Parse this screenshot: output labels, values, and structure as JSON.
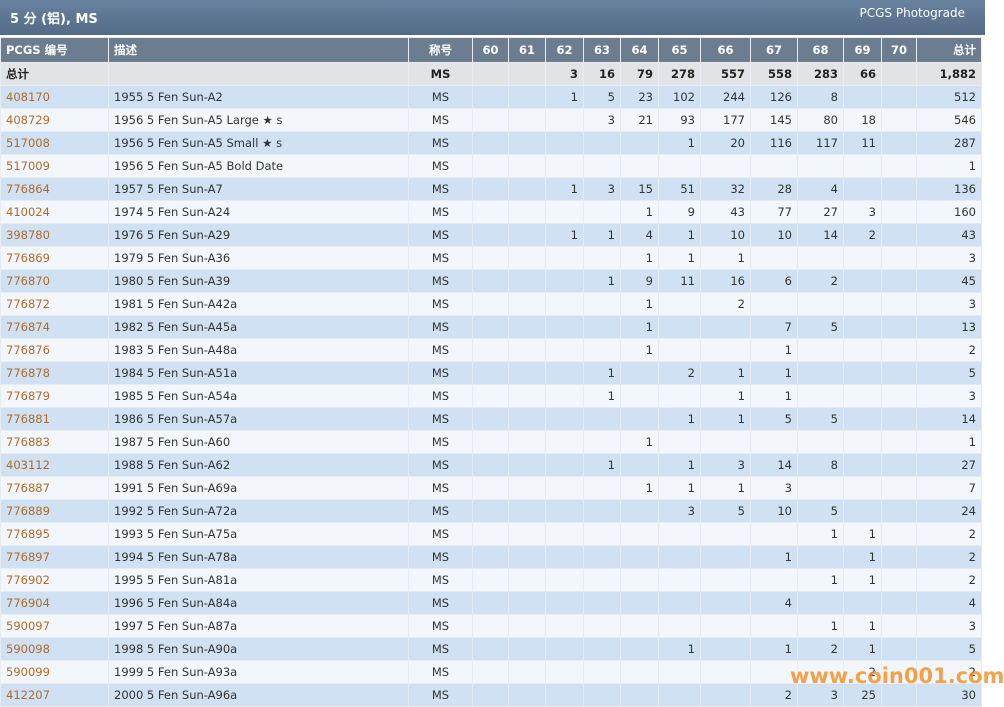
{
  "header": {
    "title": "5 分 (铝), MS",
    "link": "PCGS Photograde"
  },
  "table": {
    "columns": [
      "PCGS 编号",
      "描述",
      "称号",
      60,
      61,
      62,
      63,
      64,
      65,
      66,
      67,
      68,
      69,
      70,
      "总计"
    ],
    "total_row": {
      "label": "总计",
      "designation": "MS",
      "grades": [
        null,
        null,
        3,
        16,
        79,
        278,
        557,
        558,
        283,
        66,
        null
      ],
      "total": "1,882"
    },
    "rows": [
      {
        "pcgs": "408170",
        "description": "1955 5 Fen Sun-A2",
        "designation": "MS",
        "grades": [
          null,
          null,
          1,
          5,
          23,
          102,
          244,
          126,
          8,
          null,
          null
        ],
        "total": 512
      },
      {
        "pcgs": "408729",
        "description": "1956 5 Fen Sun-A5 Large ★ s",
        "designation": "MS",
        "grades": [
          null,
          null,
          null,
          3,
          21,
          93,
          177,
          145,
          80,
          18,
          null
        ],
        "total": 546
      },
      {
        "pcgs": "517008",
        "description": "1956 5 Fen Sun-A5 Small ★ s",
        "designation": "MS",
        "grades": [
          null,
          null,
          null,
          null,
          null,
          1,
          20,
          116,
          117,
          11,
          null
        ],
        "total": 287
      },
      {
        "pcgs": "517009",
        "description": "1956 5 Fen Sun-A5 Bold Date",
        "designation": "MS",
        "grades": [
          null,
          null,
          null,
          null,
          null,
          null,
          null,
          null,
          null,
          null,
          null
        ],
        "total": 1
      },
      {
        "pcgs": "776864",
        "description": "1957 5 Fen Sun-A7",
        "designation": "MS",
        "grades": [
          null,
          null,
          1,
          3,
          15,
          51,
          32,
          28,
          4,
          null,
          null
        ],
        "total": 136
      },
      {
        "pcgs": "410024",
        "description": "1974 5 Fen Sun-A24",
        "designation": "MS",
        "grades": [
          null,
          null,
          null,
          null,
          1,
          9,
          43,
          77,
          27,
          3,
          null
        ],
        "total": 160
      },
      {
        "pcgs": "398780",
        "description": "1976 5 Fen Sun-A29",
        "designation": "MS",
        "grades": [
          null,
          null,
          1,
          1,
          4,
          1,
          10,
          10,
          14,
          2,
          null
        ],
        "total": 43
      },
      {
        "pcgs": "776869",
        "description": "1979 5 Fen Sun-A36",
        "designation": "MS",
        "grades": [
          null,
          null,
          null,
          null,
          1,
          1,
          1,
          null,
          null,
          null,
          null
        ],
        "total": 3
      },
      {
        "pcgs": "776870",
        "description": "1980 5 Fen Sun-A39",
        "designation": "MS",
        "grades": [
          null,
          null,
          null,
          1,
          9,
          11,
          16,
          6,
          2,
          null,
          null
        ],
        "total": 45
      },
      {
        "pcgs": "776872",
        "description": "1981 5 Fen Sun-A42a",
        "designation": "MS",
        "grades": [
          null,
          null,
          null,
          null,
          1,
          null,
          2,
          null,
          null,
          null,
          null
        ],
        "total": 3
      },
      {
        "pcgs": "776874",
        "description": "1982 5 Fen Sun-A45a",
        "designation": "MS",
        "grades": [
          null,
          null,
          null,
          null,
          1,
          null,
          null,
          7,
          5,
          null,
          null
        ],
        "total": 13
      },
      {
        "pcgs": "776876",
        "description": "1983 5 Fen Sun-A48a",
        "designation": "MS",
        "grades": [
          null,
          null,
          null,
          null,
          1,
          null,
          null,
          1,
          null,
          null,
          null
        ],
        "total": 2
      },
      {
        "pcgs": "776878",
        "description": "1984 5 Fen Sun-A51a",
        "designation": "MS",
        "grades": [
          null,
          null,
          null,
          1,
          null,
          2,
          1,
          1,
          null,
          null,
          null
        ],
        "total": 5
      },
      {
        "pcgs": "776879",
        "description": "1985 5 Fen Sun-A54a",
        "designation": "MS",
        "grades": [
          null,
          null,
          null,
          1,
          null,
          null,
          1,
          1,
          null,
          null,
          null
        ],
        "total": 3
      },
      {
        "pcgs": "776881",
        "description": "1986 5 Fen Sun-A57a",
        "designation": "MS",
        "grades": [
          null,
          null,
          null,
          null,
          null,
          1,
          1,
          5,
          5,
          null,
          null
        ],
        "total": 14
      },
      {
        "pcgs": "776883",
        "description": "1987 5 Fen Sun-A60",
        "designation": "MS",
        "grades": [
          null,
          null,
          null,
          null,
          1,
          null,
          null,
          null,
          null,
          null,
          null
        ],
        "total": 1
      },
      {
        "pcgs": "403112",
        "description": "1988 5 Fen Sun-A62",
        "designation": "MS",
        "grades": [
          null,
          null,
          null,
          1,
          null,
          1,
          3,
          14,
          8,
          null,
          null
        ],
        "total": 27
      },
      {
        "pcgs": "776887",
        "description": "1991 5 Fen Sun-A69a",
        "designation": "MS",
        "grades": [
          null,
          null,
          null,
          null,
          1,
          1,
          1,
          3,
          null,
          null,
          null
        ],
        "total": 7
      },
      {
        "pcgs": "776889",
        "description": "1992 5 Fen Sun-A72a",
        "designation": "MS",
        "grades": [
          null,
          null,
          null,
          null,
          null,
          3,
          5,
          10,
          5,
          null,
          null
        ],
        "total": 24
      },
      {
        "pcgs": "776895",
        "description": "1993 5 Fen Sun-A75a",
        "designation": "MS",
        "grades": [
          null,
          null,
          null,
          null,
          null,
          null,
          null,
          null,
          1,
          1,
          null
        ],
        "total": 2
      },
      {
        "pcgs": "776897",
        "description": "1994 5 Fen Sun-A78a",
        "designation": "MS",
        "grades": [
          null,
          null,
          null,
          null,
          null,
          null,
          null,
          1,
          null,
          1,
          null
        ],
        "total": 2
      },
      {
        "pcgs": "776902",
        "description": "1995 5 Fen Sun-A81a",
        "designation": "MS",
        "grades": [
          null,
          null,
          null,
          null,
          null,
          null,
          null,
          null,
          1,
          1,
          null
        ],
        "total": 2
      },
      {
        "pcgs": "776904",
        "description": "1996 5 Fen Sun-A84a",
        "designation": "MS",
        "grades": [
          null,
          null,
          null,
          null,
          null,
          null,
          null,
          4,
          null,
          null,
          null
        ],
        "total": 4
      },
      {
        "pcgs": "590097",
        "description": "1997 5 Fen Sun-A87a",
        "designation": "MS",
        "grades": [
          null,
          null,
          null,
          null,
          null,
          null,
          null,
          null,
          1,
          1,
          null
        ],
        "total": 3
      },
      {
        "pcgs": "590098",
        "description": "1998 5 Fen Sun-A90a",
        "designation": "MS",
        "grades": [
          null,
          null,
          null,
          null,
          null,
          1,
          null,
          1,
          2,
          1,
          null
        ],
        "total": 5
      },
      {
        "pcgs": "590099",
        "description": "1999 5 Fen Sun-A93a",
        "designation": "MS",
        "grades": [
          null,
          null,
          null,
          null,
          null,
          null,
          null,
          null,
          null,
          2,
          null
        ],
        "total": 2
      },
      {
        "pcgs": "412207",
        "description": "2000 5 Fen Sun-A96a",
        "designation": "MS",
        "grades": [
          null,
          null,
          null,
          null,
          null,
          null,
          null,
          2,
          3,
          25,
          null
        ],
        "total": 30
      }
    ]
  },
  "watermark": "www.coin001.com"
}
